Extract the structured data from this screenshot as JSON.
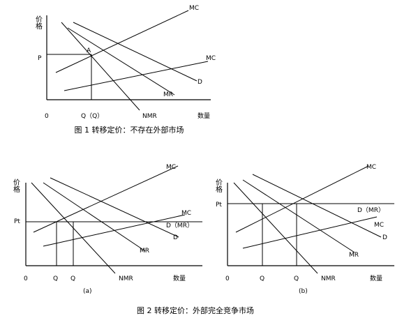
{
  "figure1": {
    "y_label": "价格",
    "p_label": "P",
    "point": "A",
    "mc_top": "MC",
    "mc_low": "MC",
    "d": "D",
    "mr": "MR",
    "nmr": "NMR",
    "q": "Q（Q）",
    "origin": "0",
    "x_label": "数量",
    "caption": "图 1 转移定价：不存在外部市场"
  },
  "figure2a": {
    "y_label": "价格",
    "p_label": "Pt",
    "mc_top": "MC",
    "mc_low": "MC",
    "dmr": "D（MR）",
    "d": "D",
    "mr": "MR",
    "nmr": "NMR",
    "q1": "Q",
    "q2": "Q",
    "origin": "0",
    "x_label": "数量",
    "tag": "(a)"
  },
  "figure2b": {
    "y_label": "价格",
    "p_label": "Pt",
    "mc_top": "MC",
    "dmr": "D（MR）",
    "mc_low": "MC",
    "d": "D",
    "mr": "MR",
    "nmr": "NMR",
    "q1": "Q",
    "q2": "Q",
    "origin": "0",
    "x_label": "数量",
    "tag": "(b)"
  },
  "caption2": "图 2 转移定价：外部完全竞争市场"
}
